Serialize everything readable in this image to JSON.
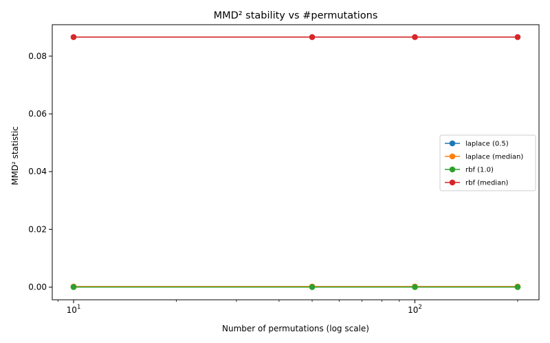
{
  "chart_data": {
    "type": "line",
    "title": "MMD² stability vs #permutations",
    "xlabel": "Number of permutations (log scale)",
    "ylabel": "MMD² statistic",
    "x_scale": "log",
    "x": [
      10,
      50,
      100,
      200
    ],
    "x_ticks": [
      {
        "value": 10,
        "base": "10",
        "exp": "1"
      },
      {
        "value": 100,
        "base": "10",
        "exp": "2"
      }
    ],
    "y_ticks": [
      "0.00",
      "0.02",
      "0.04",
      "0.06",
      "0.08"
    ],
    "y_tick_values": [
      0.0,
      0.02,
      0.04,
      0.06,
      0.08
    ],
    "ylim": [
      -0.0044,
      0.0909
    ],
    "xlim": [
      8.66,
      231
    ],
    "grid": false,
    "legend_position": "center-right",
    "series": [
      {
        "name": "laplace (0.5)",
        "color": "#1f77b4",
        "values": [
          0.0001,
          0.0001,
          0.0001,
          0.0001
        ]
      },
      {
        "name": "laplace (median)",
        "color": "#ff7f0e",
        "values": [
          0.0002,
          0.0002,
          0.0002,
          0.0002
        ]
      },
      {
        "name": "rbf (1.0)",
        "color": "#2ca02c",
        "values": [
          0.0,
          0.0,
          0.0,
          0.0
        ]
      },
      {
        "name": "rbf (median)",
        "color": "#d62728",
        "values": [
          0.0866,
          0.0866,
          0.0866,
          0.0866
        ]
      }
    ]
  }
}
